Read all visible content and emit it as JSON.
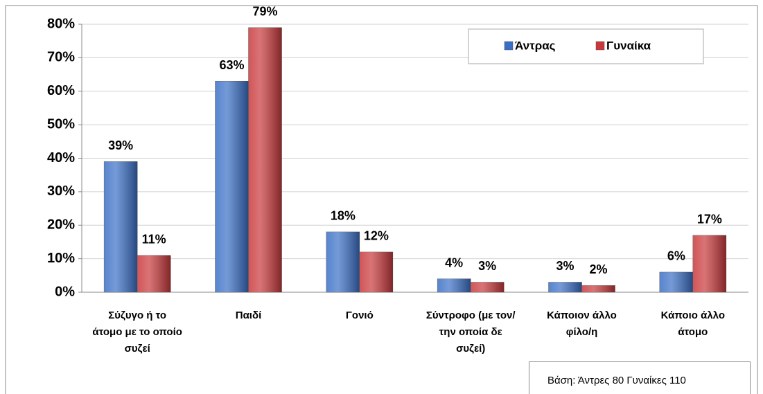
{
  "chart_data": {
    "type": "bar",
    "categories": [
      "Σύζυγο ή το άτομο με το οποίο συζεί",
      "Παιδί",
      "Γονιό",
      "Σύντροφο (με τον/την οποία δε συζεί)",
      "Κάποιον άλλο φίλο/η",
      "Κάποιο άλλο άτομο"
    ],
    "series": [
      {
        "name": "Άντρας",
        "color": "#3a6fc6",
        "values": [
          39,
          63,
          18,
          4,
          3,
          6
        ],
        "value_labels": [
          "39%",
          "63%",
          "18%",
          "4%",
          "3%",
          "6%"
        ]
      },
      {
        "name": "Γυναίκα",
        "color": "#c9383b",
        "values": [
          11,
          79,
          12,
          3,
          2,
          17
        ],
        "value_labels": [
          "11%",
          "79%",
          "12%",
          "3%",
          "2%",
          "17%"
        ]
      }
    ],
    "ylim": [
      0,
      80
    ],
    "yticks": [
      {
        "value": 0,
        "label": "0%"
      },
      {
        "value": 10,
        "label": "10%"
      },
      {
        "value": 20,
        "label": "20%"
      },
      {
        "value": 30,
        "label": "30%"
      },
      {
        "value": 40,
        "label": "40%"
      },
      {
        "value": 50,
        "label": "50%"
      },
      {
        "value": 60,
        "label": "60%"
      },
      {
        "value": 70,
        "label": "70%"
      },
      {
        "value": 80,
        "label": "80%"
      }
    ],
    "grid": true,
    "legend": "top-right",
    "note": "Βάση: Άντρες 80 Γυναίκες 110"
  }
}
